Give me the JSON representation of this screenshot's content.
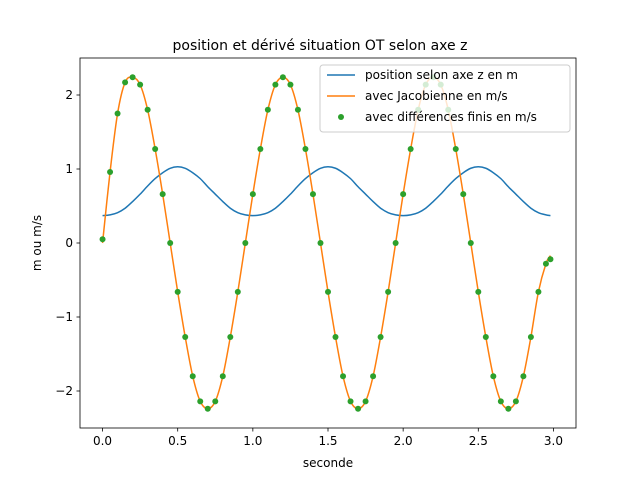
{
  "chart_data": {
    "type": "line",
    "title": "position et dérivé situation OT selon axe z",
    "xlabel": "seconde",
    "ylabel": "m ou m/s",
    "xlim": [
      -0.15,
      3.15
    ],
    "ylim": [
      -2.5,
      2.5
    ],
    "xticks": [
      0.0,
      0.5,
      1.0,
      1.5,
      2.0,
      2.5,
      3.0
    ],
    "xtick_labels": [
      "0.0",
      "0.5",
      "1.0",
      "1.5",
      "2.0",
      "2.5",
      "3.0"
    ],
    "yticks": [
      -2,
      -1,
      0,
      1,
      2
    ],
    "ytick_labels": [
      "−2",
      "−1",
      "0",
      "1",
      "2"
    ],
    "grid": false,
    "legend_position": "top-right",
    "series": [
      {
        "name": "position selon axe z en m",
        "kind": "line",
        "color": "#1f77b4",
        "x": [
          0.0,
          0.05,
          0.1,
          0.15,
          0.2,
          0.25,
          0.3,
          0.35,
          0.4,
          0.45,
          0.5,
          0.55,
          0.6,
          0.65,
          0.7,
          0.75,
          0.8,
          0.85,
          0.9,
          0.95,
          1.0,
          1.05,
          1.1,
          1.15,
          1.2,
          1.25,
          1.3,
          1.35,
          1.4,
          1.45,
          1.5,
          1.55,
          1.6,
          1.65,
          1.7,
          1.75,
          1.8,
          1.85,
          1.9,
          1.95,
          2.0,
          2.05,
          2.1,
          2.15,
          2.2,
          2.25,
          2.3,
          2.35,
          2.4,
          2.45,
          2.5,
          2.55,
          2.6,
          2.65,
          2.7,
          2.75,
          2.8,
          2.85,
          2.9,
          2.95,
          2.98
        ],
        "y": [
          0.37,
          0.38,
          0.41,
          0.47,
          0.56,
          0.66,
          0.77,
          0.87,
          0.95,
          1.01,
          1.03,
          1.01,
          0.95,
          0.87,
          0.76,
          0.66,
          0.56,
          0.47,
          0.41,
          0.38,
          0.37,
          0.38,
          0.41,
          0.47,
          0.56,
          0.66,
          0.77,
          0.87,
          0.95,
          1.01,
          1.03,
          1.01,
          0.95,
          0.87,
          0.76,
          0.66,
          0.56,
          0.47,
          0.41,
          0.38,
          0.37,
          0.38,
          0.41,
          0.47,
          0.56,
          0.66,
          0.77,
          0.87,
          0.95,
          1.01,
          1.03,
          1.01,
          0.95,
          0.87,
          0.76,
          0.66,
          0.56,
          0.47,
          0.41,
          0.38,
          0.37
        ]
      },
      {
        "name": "avec Jacobienne en m/s",
        "kind": "line",
        "color": "#ff7f0e",
        "x": [
          0.0,
          0.05,
          0.1,
          0.15,
          0.2,
          0.25,
          0.3,
          0.35,
          0.4,
          0.45,
          0.5,
          0.55,
          0.6,
          0.65,
          0.7,
          0.75,
          0.8,
          0.85,
          0.9,
          0.95,
          1.0,
          1.05,
          1.1,
          1.15,
          1.2,
          1.25,
          1.3,
          1.35,
          1.4,
          1.45,
          1.5,
          1.55,
          1.6,
          1.65,
          1.7,
          1.75,
          1.8,
          1.85,
          1.9,
          1.95,
          2.0,
          2.05,
          2.1,
          2.15,
          2.2,
          2.25,
          2.3,
          2.35,
          2.4,
          2.45,
          2.5,
          2.55,
          2.6,
          2.65,
          2.7,
          2.75,
          2.8,
          2.85,
          2.9,
          2.95,
          2.98
        ],
        "y": [
          0.0,
          0.96,
          1.75,
          2.17,
          2.24,
          2.14,
          1.8,
          1.27,
          0.66,
          0.0,
          -0.66,
          -1.27,
          -1.8,
          -2.14,
          -2.24,
          -2.14,
          -1.8,
          -1.27,
          -0.66,
          0.0,
          0.66,
          1.27,
          1.8,
          2.14,
          2.24,
          2.14,
          1.8,
          1.27,
          0.66,
          0.0,
          -0.66,
          -1.27,
          -1.8,
          -2.14,
          -2.24,
          -2.14,
          -1.8,
          -1.27,
          -0.66,
          0.0,
          0.66,
          1.27,
          1.8,
          2.14,
          2.24,
          2.14,
          1.8,
          1.27,
          0.66,
          0.0,
          -0.66,
          -1.27,
          -1.8,
          -2.14,
          -2.24,
          -2.14,
          -1.8,
          -1.27,
          -0.66,
          -0.28,
          -0.17
        ]
      },
      {
        "name": "avec différences finis en m/s",
        "kind": "scatter",
        "color": "#2ca02c",
        "x": [
          0.0,
          0.05,
          0.1,
          0.15,
          0.2,
          0.25,
          0.3,
          0.35,
          0.4,
          0.45,
          0.5,
          0.55,
          0.6,
          0.65,
          0.7,
          0.75,
          0.8,
          0.85,
          0.9,
          0.95,
          1.0,
          1.05,
          1.1,
          1.15,
          1.2,
          1.25,
          1.3,
          1.35,
          1.4,
          1.45,
          1.5,
          1.55,
          1.6,
          1.65,
          1.7,
          1.75,
          1.8,
          1.85,
          1.9,
          1.95,
          2.0,
          2.05,
          2.1,
          2.15,
          2.2,
          2.25,
          2.3,
          2.35,
          2.4,
          2.45,
          2.5,
          2.55,
          2.6,
          2.65,
          2.7,
          2.75,
          2.8,
          2.85,
          2.9,
          2.95,
          2.98
        ],
        "y": [
          0.05,
          0.96,
          1.75,
          2.17,
          2.24,
          2.14,
          1.8,
          1.27,
          0.66,
          0.0,
          -0.66,
          -1.27,
          -1.8,
          -2.14,
          -2.24,
          -2.14,
          -1.8,
          -1.27,
          -0.66,
          0.0,
          0.66,
          1.27,
          1.8,
          2.14,
          2.24,
          2.14,
          1.8,
          1.27,
          0.66,
          0.0,
          -0.66,
          -1.27,
          -1.8,
          -2.14,
          -2.24,
          -2.14,
          -1.8,
          -1.27,
          -0.66,
          0.0,
          0.66,
          1.27,
          1.8,
          2.14,
          2.24,
          2.14,
          1.8,
          1.27,
          0.66,
          0.0,
          -0.66,
          -1.27,
          -1.8,
          -2.14,
          -2.24,
          -2.14,
          -1.8,
          -1.27,
          -0.66,
          -0.28,
          -0.22
        ]
      }
    ]
  }
}
